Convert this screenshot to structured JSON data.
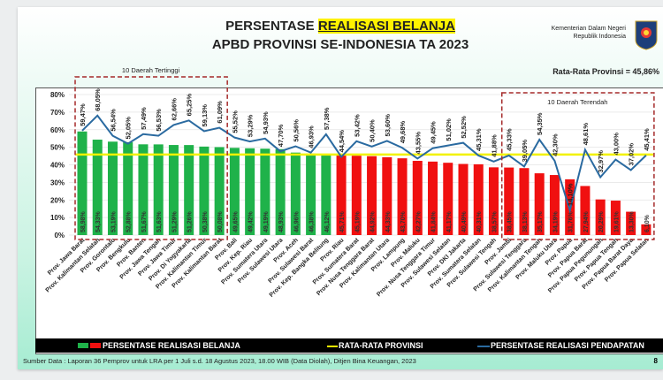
{
  "title": {
    "prefix": "PERSENTASE ",
    "highlight": "REALISASI BELANJA",
    "line2": "APBD PROVINSI SE-INDONESIA TA 2023"
  },
  "org": {
    "line1": "Kementerian Dalam Negeri",
    "line2": "Republik Indonesia"
  },
  "average_label": "Rata-Rata Provinsi = 45,86%",
  "box_labels": {
    "top": "10 Daerah Tertinggi",
    "bottom": "10 Daerah Terendah"
  },
  "legend": {
    "spending": "PERSENTASE REALISASI BELANJA",
    "average": "RATA-RATA PROVINSI",
    "revenue": "PERSENTASE REALISASI PENDAPATAN"
  },
  "source": "Sumber Data : Laporan 36 Pemprov untuk LRA per 1 Juli s.d. 18 Agustus 2023, 18.00 WIB (Data Diolah), Ditjen Bina Keuangan, 2023",
  "page_number": "8",
  "colors": {
    "above": "#1fb24a",
    "below": "#f01010",
    "average": "#f2f200",
    "revenue": "#2a6aa0"
  },
  "chart_data": {
    "type": "bar",
    "title": "PERSENTASE REALISASI BELANJA APBD PROVINSI SE-INDONESIA TA 2023",
    "ylim": [
      0,
      80
    ],
    "yticks": [
      "0%",
      "10%",
      "20%",
      "30%",
      "40%",
      "50%",
      "60%",
      "70%",
      "80%"
    ],
    "average": 45.86,
    "categories": [
      "Prov. Jawa Barat",
      "Prov. Kalimantan Selatan",
      "Prov. Gorontalo",
      "Prov. Bengkulu",
      "Prov. Banten",
      "Prov. Jawa Tengah",
      "Prov. Jawa Timur",
      "Prov. Di Yogyakarta",
      "Prov. Kalimantan Timur",
      "Prov. Kalimantan Barat",
      "Prov. Bali",
      "Prov. Kep. Riau",
      "Prov. Sumatera Utara",
      "Prov. Sulawesi Utara",
      "Prov. Aceh",
      "Prov. Sulawesi Barat",
      "Prov. Kep. Bangka Belitung",
      "Prov. Riau",
      "Prov. Sumatera Barat",
      "Prov. Nusa Tenggara Barat",
      "Prov. Kalimantan Utara",
      "Prov. Lampung",
      "Prov. Maluku",
      "Prov. Nusa Tenggara Timur",
      "Prov. Sulawesi Selatan",
      "Prov. DKI Jakarta",
      "Prov. Sumatera Selatan",
      "Prov. Sulawesi Tengah",
      "Prov. Jambi",
      "Prov. Sulawesi Tenggara",
      "Prov. Kalimantan Tengah",
      "Prov. Maluku Utara",
      "Prov. Papua",
      "Prov. Papua Barat",
      "Prov. Papua Pegunungan",
      "Prov. Papua Tengah",
      "Prov. Papua Barat Daya",
      "Prov. Papua Selatan"
    ],
    "series": [
      {
        "name": "PERSENTASE REALISASI BELANJA",
        "type": "bar",
        "values": [
          58.98,
          54.33,
          53.19,
          52.88,
          51.67,
          51.63,
          51.29,
          51.26,
          50.38,
          50.08,
          49.65,
          49.42,
          49.19,
          48.93,
          46.96,
          46.38,
          46.12,
          45.71,
          45.19,
          44.92,
          44.33,
          43.7,
          42.27,
          41.84,
          41.17,
          40.49,
          40.31,
          38.57,
          38.45,
          38.13,
          35.17,
          34.19,
          31.76,
          27.94,
          20.29,
          19.61,
          13.3,
          6.1
        ]
      },
      {
        "name": "PERSENTASE REALISASI PENDAPATAN",
        "type": "line",
        "values": [
          59.47,
          68.05,
          56.54,
          52.05,
          57.49,
          56.53,
          62.66,
          65.25,
          59.13,
          61.09,
          55.52,
          53.29,
          54.93,
          47.7,
          50.56,
          46.93,
          57.38,
          44.54,
          53.42,
          50.4,
          53.6,
          49.68,
          43.55,
          49.45,
          51.02,
          52.52,
          45.31,
          41.88,
          45.33,
          39.05,
          54.35,
          42.3,
          14.1,
          48.61,
          32.97,
          43.0,
          37.02,
          45.41
        ]
      }
    ]
  }
}
